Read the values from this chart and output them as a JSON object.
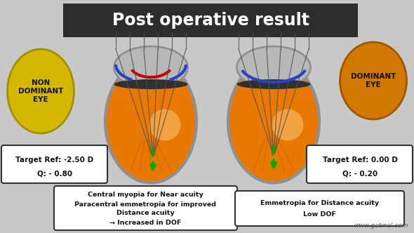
{
  "title": "Post operative result",
  "title_bg": "#2d2d2d",
  "title_color": "#ffffff",
  "bg_color": "#c8c8c8",
  "left_ellipse_color": "#d4b800",
  "right_ellipse_color": "#d07800",
  "left_eye_label": "NON\nDOMINANT\nEYE",
  "right_eye_label": "DOMINANT\nEYE",
  "left_box_line1": "Target Ref: -2.50 D",
  "left_box_line2": "Q: - 0.80",
  "right_box_line1": "Target Ref: 0.00 D",
  "right_box_line2": "Q: - 0.20",
  "left_desc": "Central myopia for Near acuity\nParacentral emmetropia for improved\nDistance acuity\n→ Increased in DOF",
  "right_desc": "Emmetropia for Distance acuity\nLow DOF",
  "watermark": "www.gatinel.com",
  "eye_body_color": "#e87800",
  "eye_body_edge": "#909090",
  "cornea_cap_color": "#b8b8b8",
  "cornea_red_color": "#cc0000",
  "cornea_blue_color": "#2244cc",
  "dark_band_color": "#303030",
  "ray_color": "#505050",
  "green_arrow_color": "#00aa00",
  "focal_marker_color": "#cc8800"
}
